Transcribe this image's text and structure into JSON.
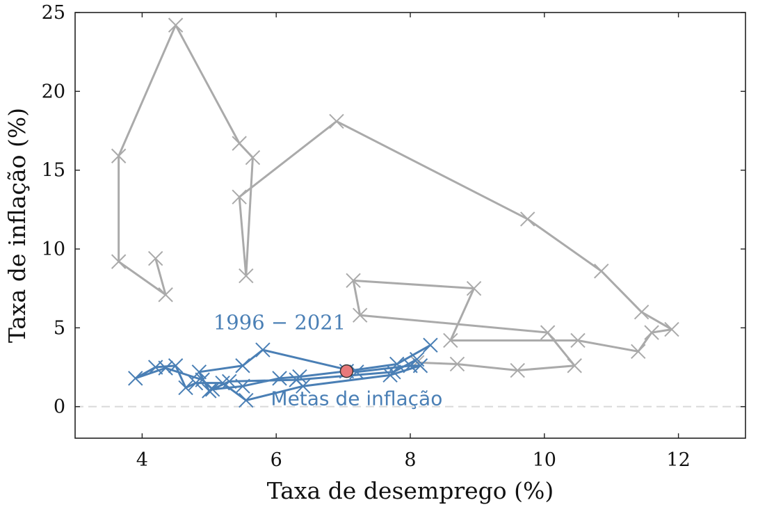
{
  "chart_data": {
    "type": "line",
    "xlabel": "Taxa de desemprego (%)",
    "ylabel": "Taxa de inflação (%)",
    "xlim": [
      3,
      13
    ],
    "ylim": [
      -2,
      25
    ],
    "xticks": [
      4,
      6,
      8,
      10,
      12
    ],
    "yticks": [
      0,
      5,
      10,
      15,
      20,
      25
    ],
    "xtick_labels": [
      "4",
      "6",
      "8",
      "10",
      "12"
    ],
    "ytick_labels": [
      "0",
      "5",
      "10",
      "15",
      "20",
      "25"
    ],
    "grid": false,
    "reference_line": {
      "y": 0,
      "style": "dashed",
      "color": "#d9d9d9"
    },
    "series": [
      {
        "color": "#aaaaaa",
        "marker": "x",
        "points": [
          [
            4.2,
            9.4
          ],
          [
            4.35,
            7.1
          ],
          [
            3.65,
            9.2
          ],
          [
            3.65,
            15.9
          ],
          [
            4.5,
            24.2
          ],
          [
            5.45,
            16.7
          ],
          [
            5.65,
            15.8
          ],
          [
            5.55,
            8.3
          ],
          [
            5.45,
            13.3
          ],
          [
            6.9,
            18.1
          ],
          [
            9.75,
            11.9
          ],
          [
            10.85,
            8.6
          ],
          [
            11.45,
            6.0
          ],
          [
            11.9,
            4.9
          ],
          [
            11.6,
            4.7
          ],
          [
            11.4,
            3.5
          ],
          [
            10.5,
            4.2
          ],
          [
            8.6,
            4.2
          ],
          [
            8.95,
            7.5
          ],
          [
            7.15,
            8.0
          ],
          [
            7.25,
            5.8
          ],
          [
            10.05,
            4.7
          ],
          [
            10.45,
            2.6
          ],
          [
            9.6,
            2.3
          ],
          [
            8.7,
            2.7
          ],
          [
            8.1,
            2.8
          ]
        ]
      },
      {
        "color": "#4a7fb5",
        "marker": "x",
        "points": [
          [
            8.3,
            3.9
          ],
          [
            7.8,
            2.7
          ],
          [
            7.05,
            2.25
          ],
          [
            6.35,
            1.9
          ],
          [
            6.05,
            1.8
          ],
          [
            5.5,
            1.3
          ],
          [
            5.05,
            1.1
          ],
          [
            4.9,
            1.7
          ],
          [
            4.35,
            2.45
          ],
          [
            3.9,
            1.8
          ],
          [
            4.2,
            2.5
          ],
          [
            4.5,
            2.6
          ],
          [
            4.65,
            1.2
          ],
          [
            4.8,
            1.5
          ],
          [
            5.2,
            1.5
          ],
          [
            5.55,
            0.4
          ],
          [
            6.4,
            1.3
          ],
          [
            7.7,
            2.0
          ],
          [
            8.15,
            2.6
          ],
          [
            8.0,
            2.6
          ],
          [
            7.2,
            2.2
          ],
          [
            5.8,
            3.6
          ],
          [
            5.5,
            2.6
          ],
          [
            4.85,
            2.2
          ],
          [
            5.0,
            1.0
          ],
          [
            5.3,
            1.6
          ],
          [
            6.3,
            1.7
          ],
          [
            7.75,
            2.2
          ],
          [
            8.1,
            3.0
          ]
        ]
      }
    ],
    "highlight_point": {
      "x": 7.05,
      "y": 2.25,
      "color": "#e8797a"
    },
    "annotations": [
      {
        "text": "1996 − 2021",
        "x": 6.05,
        "y": 4.9,
        "color": "#4a7fb5",
        "font": "serif"
      },
      {
        "text": "Metas de inflação",
        "x": 7.2,
        "y": 0.1,
        "color": "#4a7fb5",
        "font": "sans"
      }
    ]
  }
}
